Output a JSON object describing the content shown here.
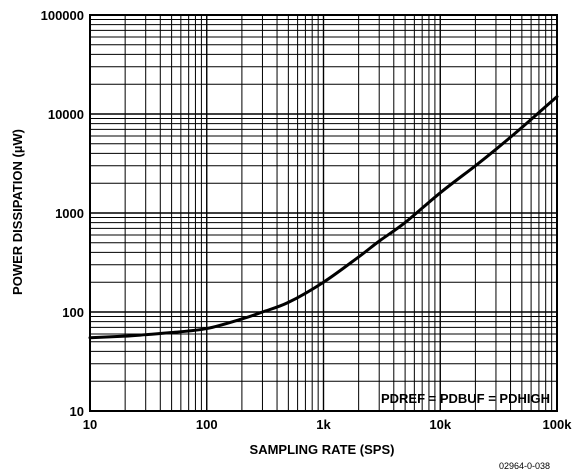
{
  "chart_data": {
    "type": "line",
    "title": "",
    "xlabel": "SAMPLING RATE (SPS)",
    "ylabel": "POWER DISSIPATION (µW)",
    "xscale": "log",
    "yscale": "log",
    "xlim": [
      10,
      100000
    ],
    "ylim": [
      10,
      100000
    ],
    "grid": true,
    "x_ticks": [
      10,
      100,
      1000,
      10000,
      100000
    ],
    "x_tick_labels": [
      "10",
      "100",
      "1k",
      "10k",
      "100k"
    ],
    "y_ticks": [
      10,
      100,
      1000,
      10000,
      100000
    ],
    "y_tick_labels": [
      "10",
      "100",
      "1000",
      "10000",
      "100000"
    ],
    "annotation": "PDREF = PDBUF = PDHIGH",
    "series": [
      {
        "x": [
          10,
          20,
          30,
          50,
          100,
          200,
          300,
          500,
          1000,
          2000,
          3000,
          5000,
          10000,
          20000,
          30000,
          50000,
          100000
        ],
        "y": [
          55,
          57,
          59,
          62,
          68,
          85,
          100,
          125,
          200,
          360,
          520,
          800,
          1600,
          3000,
          4400,
          7300,
          15000
        ]
      }
    ],
    "colors": {
      "line": "#000000",
      "grid": "#000000",
      "background": "#ffffff"
    }
  },
  "figure_id": "02964-0-038"
}
